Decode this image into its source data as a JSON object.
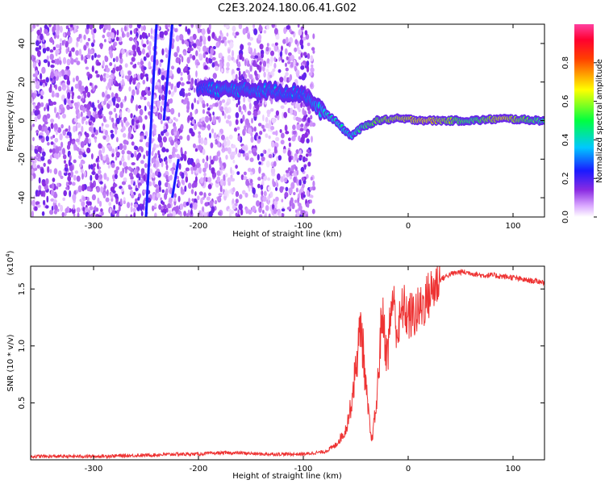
{
  "title": "C2E3.2024.180.06.41.G02",
  "chart_data": [
    {
      "type": "heatmap",
      "xlabel": "Height of straight line (km)",
      "ylabel": "Frequency (Hz)",
      "xlim": [
        -360,
        130
      ],
      "ylim": [
        -50,
        50
      ],
      "xticks": [
        -300,
        -200,
        -100,
        0,
        100
      ],
      "yticks": [
        -40,
        -20,
        0,
        20,
        40
      ],
      "colorbar": {
        "label": "Normalized spectral amplitude",
        "range": [
          0,
          1
        ],
        "ticks": [
          "0.0",
          "0.2",
          "0.4",
          "0.6",
          "0.8"
        ],
        "tick_values": [
          0.0,
          0.2,
          0.4,
          0.6,
          0.8
        ],
        "colormap": "rainbow (white-violet-blue-cyan-green-yellow-red-magenta)"
      },
      "ridge": {
        "description": "dominant spectral line",
        "points": [
          {
            "x": -200,
            "y": 17,
            "amp": 0.35
          },
          {
            "x": -180,
            "y": 16,
            "amp": 0.4
          },
          {
            "x": -160,
            "y": 16,
            "amp": 0.4
          },
          {
            "x": -140,
            "y": 16,
            "amp": 0.4
          },
          {
            "x": -120,
            "y": 15,
            "amp": 0.38
          },
          {
            "x": -100,
            "y": 14,
            "amp": 0.38
          },
          {
            "x": -85,
            "y": 6,
            "amp": 0.45
          },
          {
            "x": -70,
            "y": 0,
            "amp": 0.5
          },
          {
            "x": -55,
            "y": -8,
            "amp": 0.45
          },
          {
            "x": -45,
            "y": -4,
            "amp": 0.55
          },
          {
            "x": -30,
            "y": 0,
            "amp": 0.7
          },
          {
            "x": -10,
            "y": 1,
            "amp": 0.8
          },
          {
            "x": 20,
            "y": 0,
            "amp": 0.85
          },
          {
            "x": 60,
            "y": 0,
            "amp": 0.6
          },
          {
            "x": 90,
            "y": 1,
            "amp": 0.85
          },
          {
            "x": 130,
            "y": 0,
            "amp": 0.55
          }
        ],
        "streaks": [
          {
            "x0": -250,
            "y0": -50,
            "x1": -240,
            "y1": 50
          },
          {
            "x0": -233,
            "y0": 0,
            "x1": -225,
            "y1": 50
          },
          {
            "x0": -225,
            "y0": -40,
            "x1": -219,
            "y1": -20
          }
        ],
        "noise_region_x": [
          -360,
          -90
        ]
      }
    },
    {
      "type": "line",
      "xlabel": "Height of straight line (km)",
      "ylabel": "SNR (10 * v/v)",
      "y_multiplier": "(x10^4)",
      "y_multiplier_base": "(x10",
      "y_multiplier_exp": "4",
      "xlim": [
        -360,
        130
      ],
      "ylim": [
        0,
        1.7
      ],
      "xticks": [
        -300,
        -200,
        -100,
        0,
        100
      ],
      "yticks": [
        0.5,
        1.0,
        1.5
      ],
      "ytick_labels": [
        "0.5",
        "1.0",
        "1.5"
      ],
      "series": [
        {
          "color": "#ee3333",
          "x": [
            -360,
            -300,
            -250,
            -220,
            -200,
            -180,
            -160,
            -140,
            -120,
            -100,
            -80,
            -70,
            -60,
            -55,
            -50,
            -45,
            -40,
            -35,
            -30,
            -25,
            -20,
            -15,
            -10,
            -5,
            0,
            10,
            20,
            30,
            40,
            50,
            60,
            70,
            80,
            90,
            100,
            110,
            120,
            130
          ],
          "values": [
            0.03,
            0.03,
            0.04,
            0.05,
            0.05,
            0.06,
            0.06,
            0.05,
            0.05,
            0.05,
            0.07,
            0.12,
            0.25,
            0.45,
            0.8,
            1.2,
            0.6,
            0.15,
            0.5,
            1.3,
            0.9,
            1.45,
            1.1,
            1.35,
            1.25,
            1.3,
            1.45,
            1.58,
            1.63,
            1.65,
            1.64,
            1.62,
            1.62,
            1.61,
            1.6,
            1.58,
            1.57,
            1.56
          ]
        }
      ]
    }
  ]
}
